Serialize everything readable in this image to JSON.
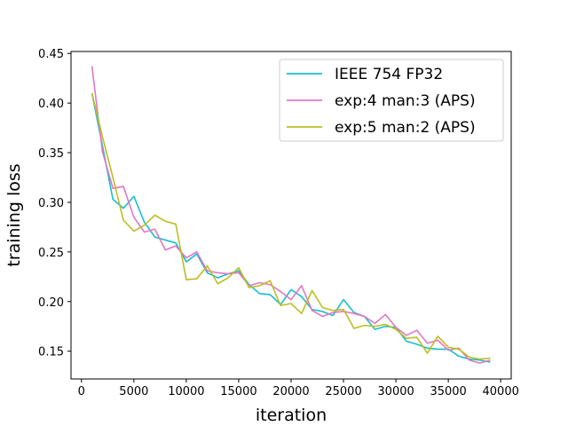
{
  "chart_data": {
    "type": "line",
    "title": "",
    "xlabel": "iteration",
    "ylabel": "training loss",
    "xlim": [
      -1000,
      41000
    ],
    "ylim": [
      0.122,
      0.452
    ],
    "xticks": [
      0,
      5000,
      10000,
      15000,
      20000,
      25000,
      30000,
      35000,
      40000
    ],
    "xtick_labels": [
      "0",
      "5000",
      "10000",
      "15000",
      "20000",
      "25000",
      "30000",
      "35000",
      "40000"
    ],
    "yticks": [
      0.15,
      0.2,
      0.25,
      0.3,
      0.35,
      0.4,
      0.45
    ],
    "ytick_labels": [
      "0.15",
      "0.20",
      "0.25",
      "0.30",
      "0.35",
      "0.40",
      "0.45"
    ],
    "grid": false,
    "legend_position": "top-right",
    "x": [
      1000,
      2000,
      3000,
      4000,
      5000,
      6000,
      7000,
      8000,
      9000,
      10000,
      11000,
      12000,
      13000,
      14000,
      15000,
      16000,
      17000,
      18000,
      19000,
      20000,
      21000,
      22000,
      23000,
      24000,
      25000,
      26000,
      27000,
      28000,
      29000,
      30000,
      31000,
      32000,
      33000,
      34000,
      35000,
      36000,
      37000,
      38000,
      39000
    ],
    "series": [
      {
        "name": "IEEE 754 FP32",
        "color": "#17becf",
        "values": [
          0.41,
          0.357,
          0.303,
          0.294,
          0.306,
          0.28,
          0.265,
          0.262,
          0.259,
          0.24,
          0.248,
          0.229,
          0.224,
          0.228,
          0.231,
          0.217,
          0.208,
          0.207,
          0.197,
          0.212,
          0.205,
          0.192,
          0.19,
          0.186,
          0.202,
          0.189,
          0.185,
          0.172,
          0.175,
          0.174,
          0.16,
          0.157,
          0.153,
          0.152,
          0.152,
          0.145,
          0.142,
          0.141,
          0.139
        ]
      },
      {
        "name": "exp:4 man:3 (APS)",
        "color": "#e377c2",
        "values": [
          0.437,
          0.351,
          0.314,
          0.316,
          0.285,
          0.27,
          0.273,
          0.252,
          0.256,
          0.244,
          0.25,
          0.231,
          0.229,
          0.228,
          0.229,
          0.216,
          0.219,
          0.217,
          0.21,
          0.202,
          0.216,
          0.191,
          0.185,
          0.189,
          0.19,
          0.188,
          0.185,
          0.178,
          0.187,
          0.174,
          0.166,
          0.171,
          0.158,
          0.161,
          0.151,
          0.153,
          0.141,
          0.138,
          0.141
        ]
      },
      {
        "name": "exp:5 man:2 (APS)",
        "color": "#bcbd22",
        "values": [
          0.41,
          0.366,
          0.325,
          0.282,
          0.271,
          0.277,
          0.287,
          0.281,
          0.278,
          0.222,
          0.223,
          0.236,
          0.218,
          0.224,
          0.234,
          0.214,
          0.216,
          0.221,
          0.196,
          0.198,
          0.188,
          0.211,
          0.194,
          0.191,
          0.192,
          0.173,
          0.176,
          0.175,
          0.177,
          0.172,
          0.163,
          0.164,
          0.148,
          0.165,
          0.154,
          0.152,
          0.144,
          0.142,
          0.143
        ]
      }
    ]
  }
}
